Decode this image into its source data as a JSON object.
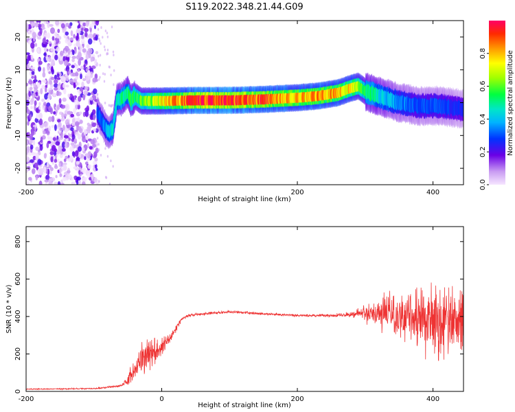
{
  "title": "S119.2022.348.21.44.G09",
  "chart_data": [
    {
      "type": "heatmap",
      "xlabel": "Height of straight line (km)",
      "ylabel": "Frequency (Hz)",
      "xlim": [
        -200,
        445
      ],
      "ylim": [
        -25,
        25
      ],
      "x_ticks": [
        -200,
        0,
        200,
        400
      ],
      "y_ticks": [
        -20,
        -10,
        0,
        10,
        20
      ],
      "grid": false,
      "colorbar": {
        "label": "Normalized spectral amplitude",
        "range": [
          0,
          1
        ],
        "ticks": [
          0.0,
          0.2,
          0.4,
          0.6,
          0.8
        ]
      },
      "ridge": {
        "x": [
          -95,
          -85,
          -78,
          -72,
          -66,
          -60,
          -55,
          -50,
          -45,
          -40,
          -30,
          -10,
          0,
          50,
          100,
          150,
          200,
          230,
          260,
          280,
          290,
          300,
          320,
          350,
          380,
          410,
          445
        ],
        "frequency": [
          -3,
          -7,
          -9,
          -8,
          1,
          1,
          2,
          3,
          0.5,
          2,
          0.5,
          0.5,
          0.5,
          0.7,
          0.7,
          1,
          1.5,
          2,
          3,
          4.5,
          5,
          3.5,
          2,
          0,
          -1,
          -1,
          -2
        ],
        "amplitude": [
          0.3,
          0.35,
          0.4,
          0.45,
          0.45,
          0.5,
          0.5,
          0.5,
          0.55,
          0.55,
          0.6,
          0.7,
          0.75,
          0.95,
          0.95,
          0.9,
          0.8,
          0.85,
          0.8,
          0.75,
          0.65,
          0.55,
          0.45,
          0.35,
          0.3,
          0.3,
          0.25
        ]
      },
      "noise_region_x": [
        -200,
        -95
      ]
    },
    {
      "type": "line",
      "xlabel": "Height of straight line (km)",
      "ylabel": "SNR (10 * v/v)",
      "xlim": [
        -200,
        445
      ],
      "ylim": [
        0,
        880
      ],
      "x_ticks": [
        -200,
        0,
        200,
        400
      ],
      "y_ticks": [
        0,
        200,
        400,
        600,
        800
      ],
      "grid": false,
      "color": "#ee3333",
      "envelope": {
        "x": [
          -200,
          -100,
          -60,
          -50,
          -40,
          -30,
          -20,
          -10,
          0,
          10,
          20,
          30,
          40,
          50,
          100,
          200,
          250,
          280,
          300,
          320,
          340,
          360,
          380,
          400,
          420,
          445
        ],
        "mean": [
          12,
          15,
          30,
          60,
          120,
          170,
          200,
          210,
          240,
          270,
          330,
          390,
          405,
          410,
          425,
          405,
          405,
          410,
          420,
          420,
          410,
          400,
          390,
          380,
          370,
          360
        ],
        "amplitude": [
          4,
          5,
          8,
          40,
          80,
          120,
          130,
          110,
          70,
          50,
          30,
          15,
          10,
          10,
          10,
          10,
          12,
          20,
          60,
          120,
          160,
          180,
          260,
          300,
          300,
          280
        ]
      }
    }
  ]
}
